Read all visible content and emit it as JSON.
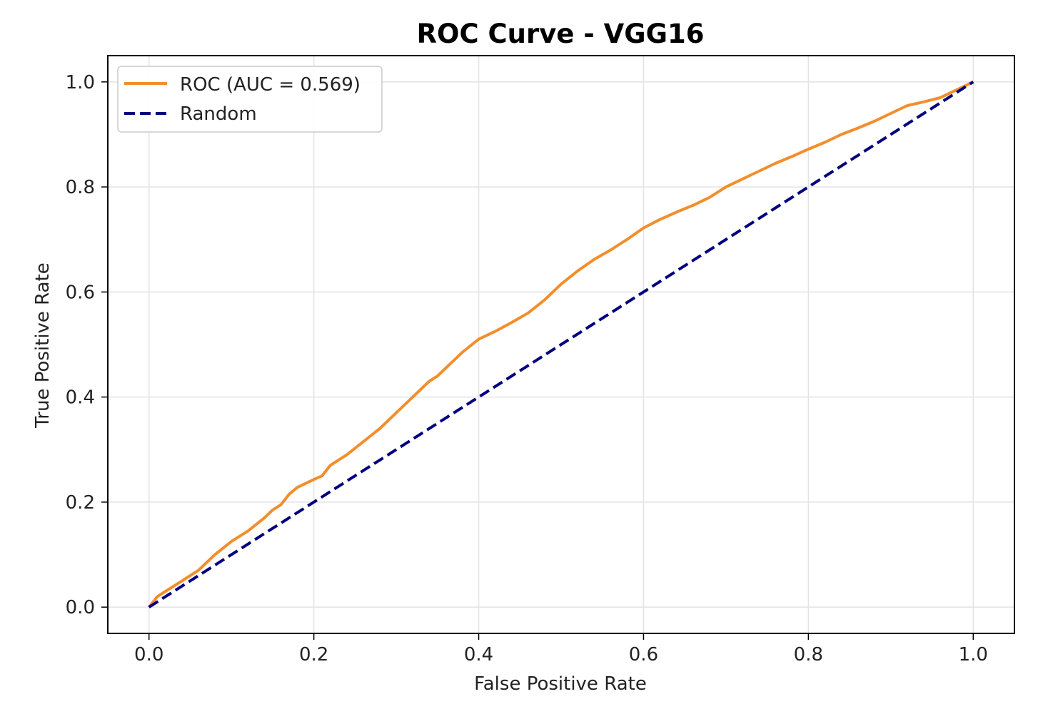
{
  "chart_data": {
    "type": "line",
    "title": "ROC Curve - VGG16",
    "xlabel": "False Positive Rate",
    "ylabel": "True Positive Rate",
    "xlim": [
      -0.05,
      1.05
    ],
    "ylim": [
      -0.05,
      1.05
    ],
    "grid": true,
    "legend_position": "upper-left",
    "xticks": [
      0.0,
      0.2,
      0.4,
      0.6,
      0.8,
      1.0
    ],
    "xtick_labels": [
      "0.0",
      "0.2",
      "0.4",
      "0.6",
      "0.8",
      "1.0"
    ],
    "yticks": [
      0.0,
      0.2,
      0.4,
      0.6,
      0.8,
      1.0
    ],
    "ytick_labels": [
      "0.0",
      "0.2",
      "0.4",
      "0.6",
      "0.8",
      "1.0"
    ],
    "series": [
      {
        "name": "ROC (AUC = 0.569)",
        "color": "#f28e2b",
        "style": "solid",
        "x": [
          0.0,
          0.01,
          0.02,
          0.04,
          0.06,
          0.08,
          0.1,
          0.12,
          0.14,
          0.15,
          0.16,
          0.17,
          0.18,
          0.2,
          0.21,
          0.22,
          0.24,
          0.26,
          0.28,
          0.3,
          0.32,
          0.34,
          0.35,
          0.36,
          0.38,
          0.4,
          0.42,
          0.44,
          0.46,
          0.48,
          0.5,
          0.52,
          0.54,
          0.56,
          0.58,
          0.6,
          0.62,
          0.64,
          0.66,
          0.68,
          0.7,
          0.72,
          0.74,
          0.76,
          0.78,
          0.8,
          0.82,
          0.84,
          0.86,
          0.88,
          0.9,
          0.92,
          0.94,
          0.96,
          0.98,
          1.0
        ],
        "y": [
          0.0,
          0.02,
          0.03,
          0.05,
          0.07,
          0.1,
          0.125,
          0.145,
          0.17,
          0.185,
          0.195,
          0.215,
          0.228,
          0.243,
          0.25,
          0.27,
          0.29,
          0.315,
          0.34,
          0.37,
          0.4,
          0.43,
          0.44,
          0.455,
          0.485,
          0.51,
          0.525,
          0.542,
          0.56,
          0.585,
          0.615,
          0.64,
          0.662,
          0.68,
          0.7,
          0.722,
          0.738,
          0.752,
          0.765,
          0.78,
          0.8,
          0.815,
          0.83,
          0.845,
          0.858,
          0.872,
          0.885,
          0.9,
          0.912,
          0.925,
          0.94,
          0.955,
          0.962,
          0.97,
          0.985,
          1.0
        ]
      },
      {
        "name": "Random",
        "color": "#000080",
        "style": "dashed",
        "x": [
          0.0,
          1.0
        ],
        "y": [
          0.0,
          1.0
        ]
      }
    ]
  }
}
